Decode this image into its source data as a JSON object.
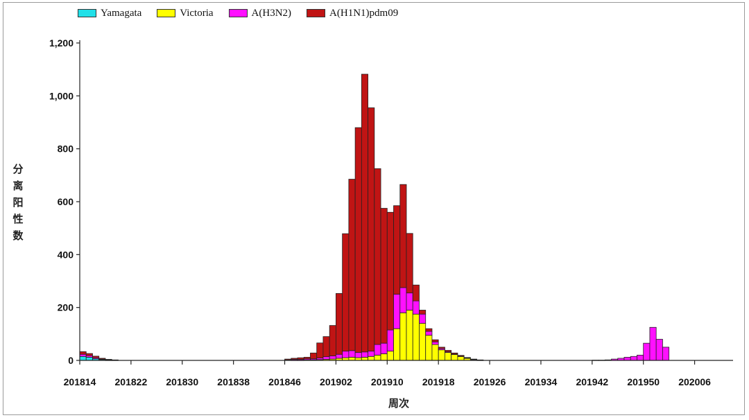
{
  "chart_data": {
    "type": "bar",
    "stacked": true,
    "ylabel": "分离阳性数",
    "xlabel": "周次",
    "ylim": [
      0,
      1200
    ],
    "y_ticks": [
      "0",
      "200",
      "400",
      "600",
      "800",
      "1,000",
      "1,200"
    ],
    "y_tick_values": [
      0,
      200,
      400,
      600,
      800,
      1000,
      1200
    ],
    "x_tick_labels": [
      "201814",
      "201822",
      "201830",
      "201838",
      "201846",
      "201902",
      "201910",
      "201918",
      "201926",
      "201934",
      "201942",
      "201950",
      "202006"
    ],
    "x_tick_every": 8,
    "legend": {
      "placement": "top"
    },
    "categories": [
      "201814",
      "201815",
      "201816",
      "201817",
      "201818",
      "201819",
      "201820",
      "201821",
      "201822",
      "201823",
      "201824",
      "201825",
      "201826",
      "201827",
      "201828",
      "201829",
      "201830",
      "201831",
      "201832",
      "201833",
      "201834",
      "201835",
      "201836",
      "201837",
      "201838",
      "201839",
      "201840",
      "201841",
      "201842",
      "201843",
      "201844",
      "201845",
      "201846",
      "201847",
      "201848",
      "201849",
      "201850",
      "201851",
      "201852",
      "201901",
      "201902",
      "201903",
      "201904",
      "201905",
      "201906",
      "201907",
      "201908",
      "201909",
      "201910",
      "201911",
      "201912",
      "201913",
      "201914",
      "201915",
      "201916",
      "201917",
      "201918",
      "201919",
      "201920",
      "201921",
      "201922",
      "201923",
      "201924",
      "201925",
      "201926",
      "201927",
      "201928",
      "201929",
      "201930",
      "201931",
      "201932",
      "201933",
      "201934",
      "201935",
      "201936",
      "201937",
      "201938",
      "201939",
      "201940",
      "201941",
      "201942",
      "201943",
      "201944",
      "201945",
      "201946",
      "201947",
      "201948",
      "201949",
      "201950",
      "201951",
      "201952",
      "202001",
      "202002",
      "202003",
      "202004",
      "202005",
      "202006",
      "202007",
      "202008",
      "202009",
      "202010",
      "202011"
    ],
    "series": [
      {
        "name": "Yamagata",
        "color": "#22e0e8",
        "values": [
          15,
          12,
          6,
          3,
          1,
          1,
          0,
          0,
          0,
          0,
          0,
          0,
          0,
          0,
          0,
          0,
          0,
          0,
          0,
          0,
          0,
          0,
          0,
          0,
          0,
          0,
          0,
          0,
          0,
          0,
          0,
          0,
          0,
          0,
          0,
          0,
          0,
          0,
          0,
          0,
          0,
          0,
          0,
          0,
          0,
          0,
          0,
          0,
          0,
          0,
          0,
          0,
          0,
          0,
          0,
          0,
          0,
          0,
          0,
          0,
          0,
          0,
          0,
          0,
          0,
          0,
          0,
          0,
          0,
          0,
          0,
          0,
          0,
          0,
          0,
          0,
          0,
          0,
          0,
          0,
          0,
          0,
          0,
          0,
          0,
          0,
          0,
          0,
          0,
          0,
          0,
          0,
          0,
          0,
          0,
          0,
          0,
          0,
          0,
          0,
          0,
          0
        ]
      },
      {
        "name": "Victoria",
        "color": "#ffff00",
        "values": [
          0,
          0,
          0,
          0,
          0,
          0,
          0,
          0,
          0,
          0,
          0,
          0,
          0,
          0,
          0,
          0,
          0,
          0,
          0,
          0,
          0,
          0,
          0,
          0,
          0,
          0,
          0,
          0,
          0,
          0,
          0,
          0,
          0,
          1,
          1,
          2,
          2,
          3,
          4,
          5,
          8,
          10,
          12,
          10,
          12,
          15,
          20,
          25,
          35,
          120,
          180,
          190,
          175,
          140,
          95,
          60,
          40,
          30,
          22,
          15,
          8,
          3,
          1,
          0,
          0,
          0,
          0,
          0,
          0,
          0,
          0,
          0,
          0,
          0,
          0,
          0,
          0,
          0,
          0,
          0,
          0,
          0,
          0,
          0,
          0,
          0,
          0,
          0,
          0,
          0,
          0,
          0,
          0,
          0,
          0,
          0,
          0,
          0,
          0,
          0,
          0,
          0
        ]
      },
      {
        "name": "A(H3N2)",
        "color": "#ff10ff",
        "values": [
          8,
          6,
          4,
          2,
          1,
          0,
          0,
          0,
          0,
          0,
          0,
          0,
          0,
          0,
          0,
          0,
          0,
          0,
          0,
          0,
          0,
          0,
          0,
          0,
          0,
          0,
          0,
          0,
          0,
          0,
          0,
          0,
          2,
          3,
          3,
          4,
          4,
          6,
          10,
          12,
          15,
          25,
          25,
          20,
          20,
          20,
          40,
          40,
          80,
          130,
          95,
          65,
          50,
          35,
          15,
          10,
          5,
          3,
          2,
          1,
          1,
          1,
          0,
          0,
          0,
          0,
          0,
          0,
          0,
          0,
          0,
          0,
          0,
          0,
          0,
          0,
          0,
          0,
          0,
          0,
          1,
          1,
          2,
          5,
          8,
          12,
          15,
          20,
          65,
          125,
          80,
          50,
          0,
          0,
          0,
          0,
          0,
          0,
          0,
          0,
          0,
          0
        ]
      },
      {
        "name": "A(H1N1)pdm09",
        "color": "#c01414",
        "values": [
          10,
          8,
          6,
          3,
          2,
          1,
          0,
          0,
          0,
          0,
          0,
          0,
          0,
          0,
          0,
          0,
          0,
          0,
          0,
          0,
          0,
          0,
          0,
          0,
          0,
          0,
          0,
          0,
          0,
          0,
          0,
          0,
          3,
          4,
          6,
          6,
          22,
          57,
          76,
          115,
          230,
          444,
          648,
          850,
          1050,
          920,
          665,
          510,
          445,
          335,
          390,
          225,
          60,
          15,
          10,
          8,
          5,
          5,
          4,
          3,
          2,
          1,
          1,
          0,
          0,
          0,
          0,
          0,
          0,
          0,
          0,
          0,
          0,
          0,
          0,
          0,
          0,
          0,
          0,
          0,
          0,
          0,
          0,
          0,
          0,
          0,
          0,
          0,
          0,
          0,
          0,
          0,
          0,
          0,
          0,
          0,
          0,
          0,
          0,
          0,
          0,
          0
        ]
      }
    ]
  }
}
